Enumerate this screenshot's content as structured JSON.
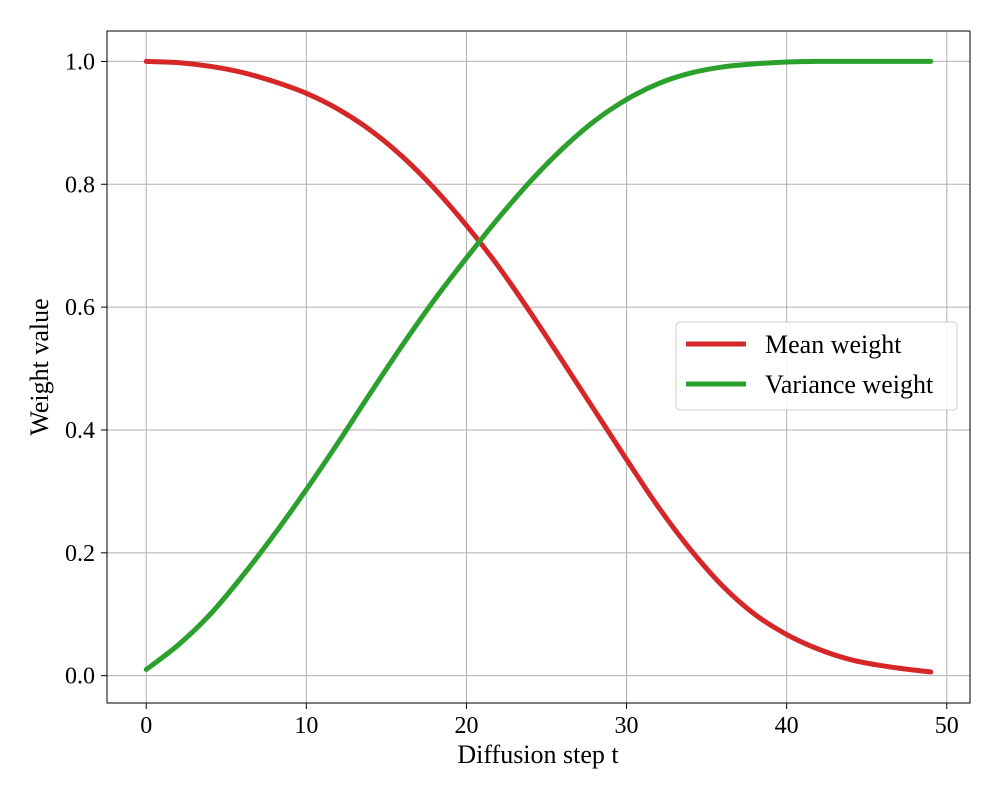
{
  "chart_data": {
    "type": "line",
    "title": "",
    "xlabel": "Diffusion step t",
    "ylabel": "Weight value",
    "xlim": [
      -2.45,
      51.45
    ],
    "ylim": [
      -0.0445,
      1.0495
    ],
    "grid": true,
    "legend_position": "center-right",
    "x_ticks": [
      0,
      10,
      20,
      30,
      40,
      50
    ],
    "x_tick_labels": [
      "0",
      "10",
      "20",
      "30",
      "40",
      "50"
    ],
    "y_ticks": [
      0.0,
      0.2,
      0.4,
      0.6,
      0.8,
      1.0
    ],
    "y_tick_labels": [
      "0.0",
      "0.2",
      "0.4",
      "0.6",
      "0.8",
      "1.0"
    ],
    "x": [
      0,
      2,
      4,
      6,
      8,
      10,
      12,
      14,
      16,
      18,
      20,
      22,
      24,
      26,
      28,
      30,
      32,
      34,
      36,
      38,
      40,
      42,
      44,
      46,
      48,
      49
    ],
    "series": [
      {
        "name": "Mean weight",
        "color": "#d62728",
        "values": [
          1.0,
          0.998,
          0.992,
          0.982,
          0.967,
          0.948,
          0.922,
          0.888,
          0.845,
          0.793,
          0.733,
          0.666,
          0.591,
          0.512,
          0.432,
          0.352,
          0.274,
          0.205,
          0.146,
          0.1,
          0.067,
          0.043,
          0.026,
          0.016,
          0.009,
          0.006
        ]
      },
      {
        "name": "Variance weight",
        "color": "#2ca02c",
        "values": [
          0.01,
          0.05,
          0.1,
          0.162,
          0.23,
          0.303,
          0.38,
          0.46,
          0.538,
          0.612,
          0.68,
          0.745,
          0.805,
          0.858,
          0.903,
          0.938,
          0.964,
          0.981,
          0.991,
          0.996,
          0.999,
          1.0,
          1.0,
          1.0,
          1.0,
          1.0
        ]
      }
    ]
  }
}
